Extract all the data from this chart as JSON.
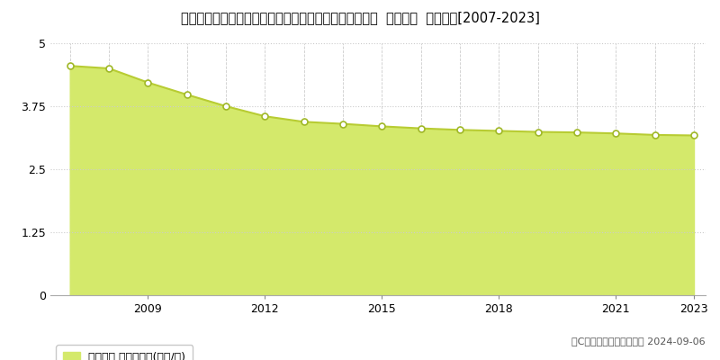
{
  "title": "茨城県北相馬郡利根町大字押付新田字五の耕地８７６番  地価公示  地価推移[2007-2023]",
  "years": [
    2007,
    2008,
    2009,
    2010,
    2011,
    2012,
    2013,
    2014,
    2015,
    2016,
    2017,
    2018,
    2019,
    2020,
    2021,
    2022,
    2023
  ],
  "values": [
    4.55,
    4.5,
    4.22,
    3.98,
    3.75,
    3.55,
    3.44,
    3.4,
    3.35,
    3.31,
    3.28,
    3.26,
    3.24,
    3.23,
    3.21,
    3.18,
    3.17
  ],
  "ylim": [
    0,
    5
  ],
  "yticks": [
    0,
    1.25,
    2.5,
    3.75,
    5
  ],
  "ytick_labels": [
    "0",
    "1.25",
    "2.5",
    "3.75",
    "5"
  ],
  "fill_color": "#d4e96b",
  "line_color": "#b8cc33",
  "marker_facecolor": "#ffffff",
  "marker_edgecolor": "#a0b828",
  "bg_color": "#ffffff",
  "plot_bg_color": "#ffffff",
  "grid_color": "#cccccc",
  "title_fontsize": 10.5,
  "legend_label": "地価公示 平均坪単価(万円/坪)",
  "legend_square_color": "#d4e96b",
  "copyright_text": "（C）土地価格ドットコム 2024-09-06",
  "xtick_years": [
    2009,
    2012,
    2015,
    2018,
    2021,
    2023
  ]
}
